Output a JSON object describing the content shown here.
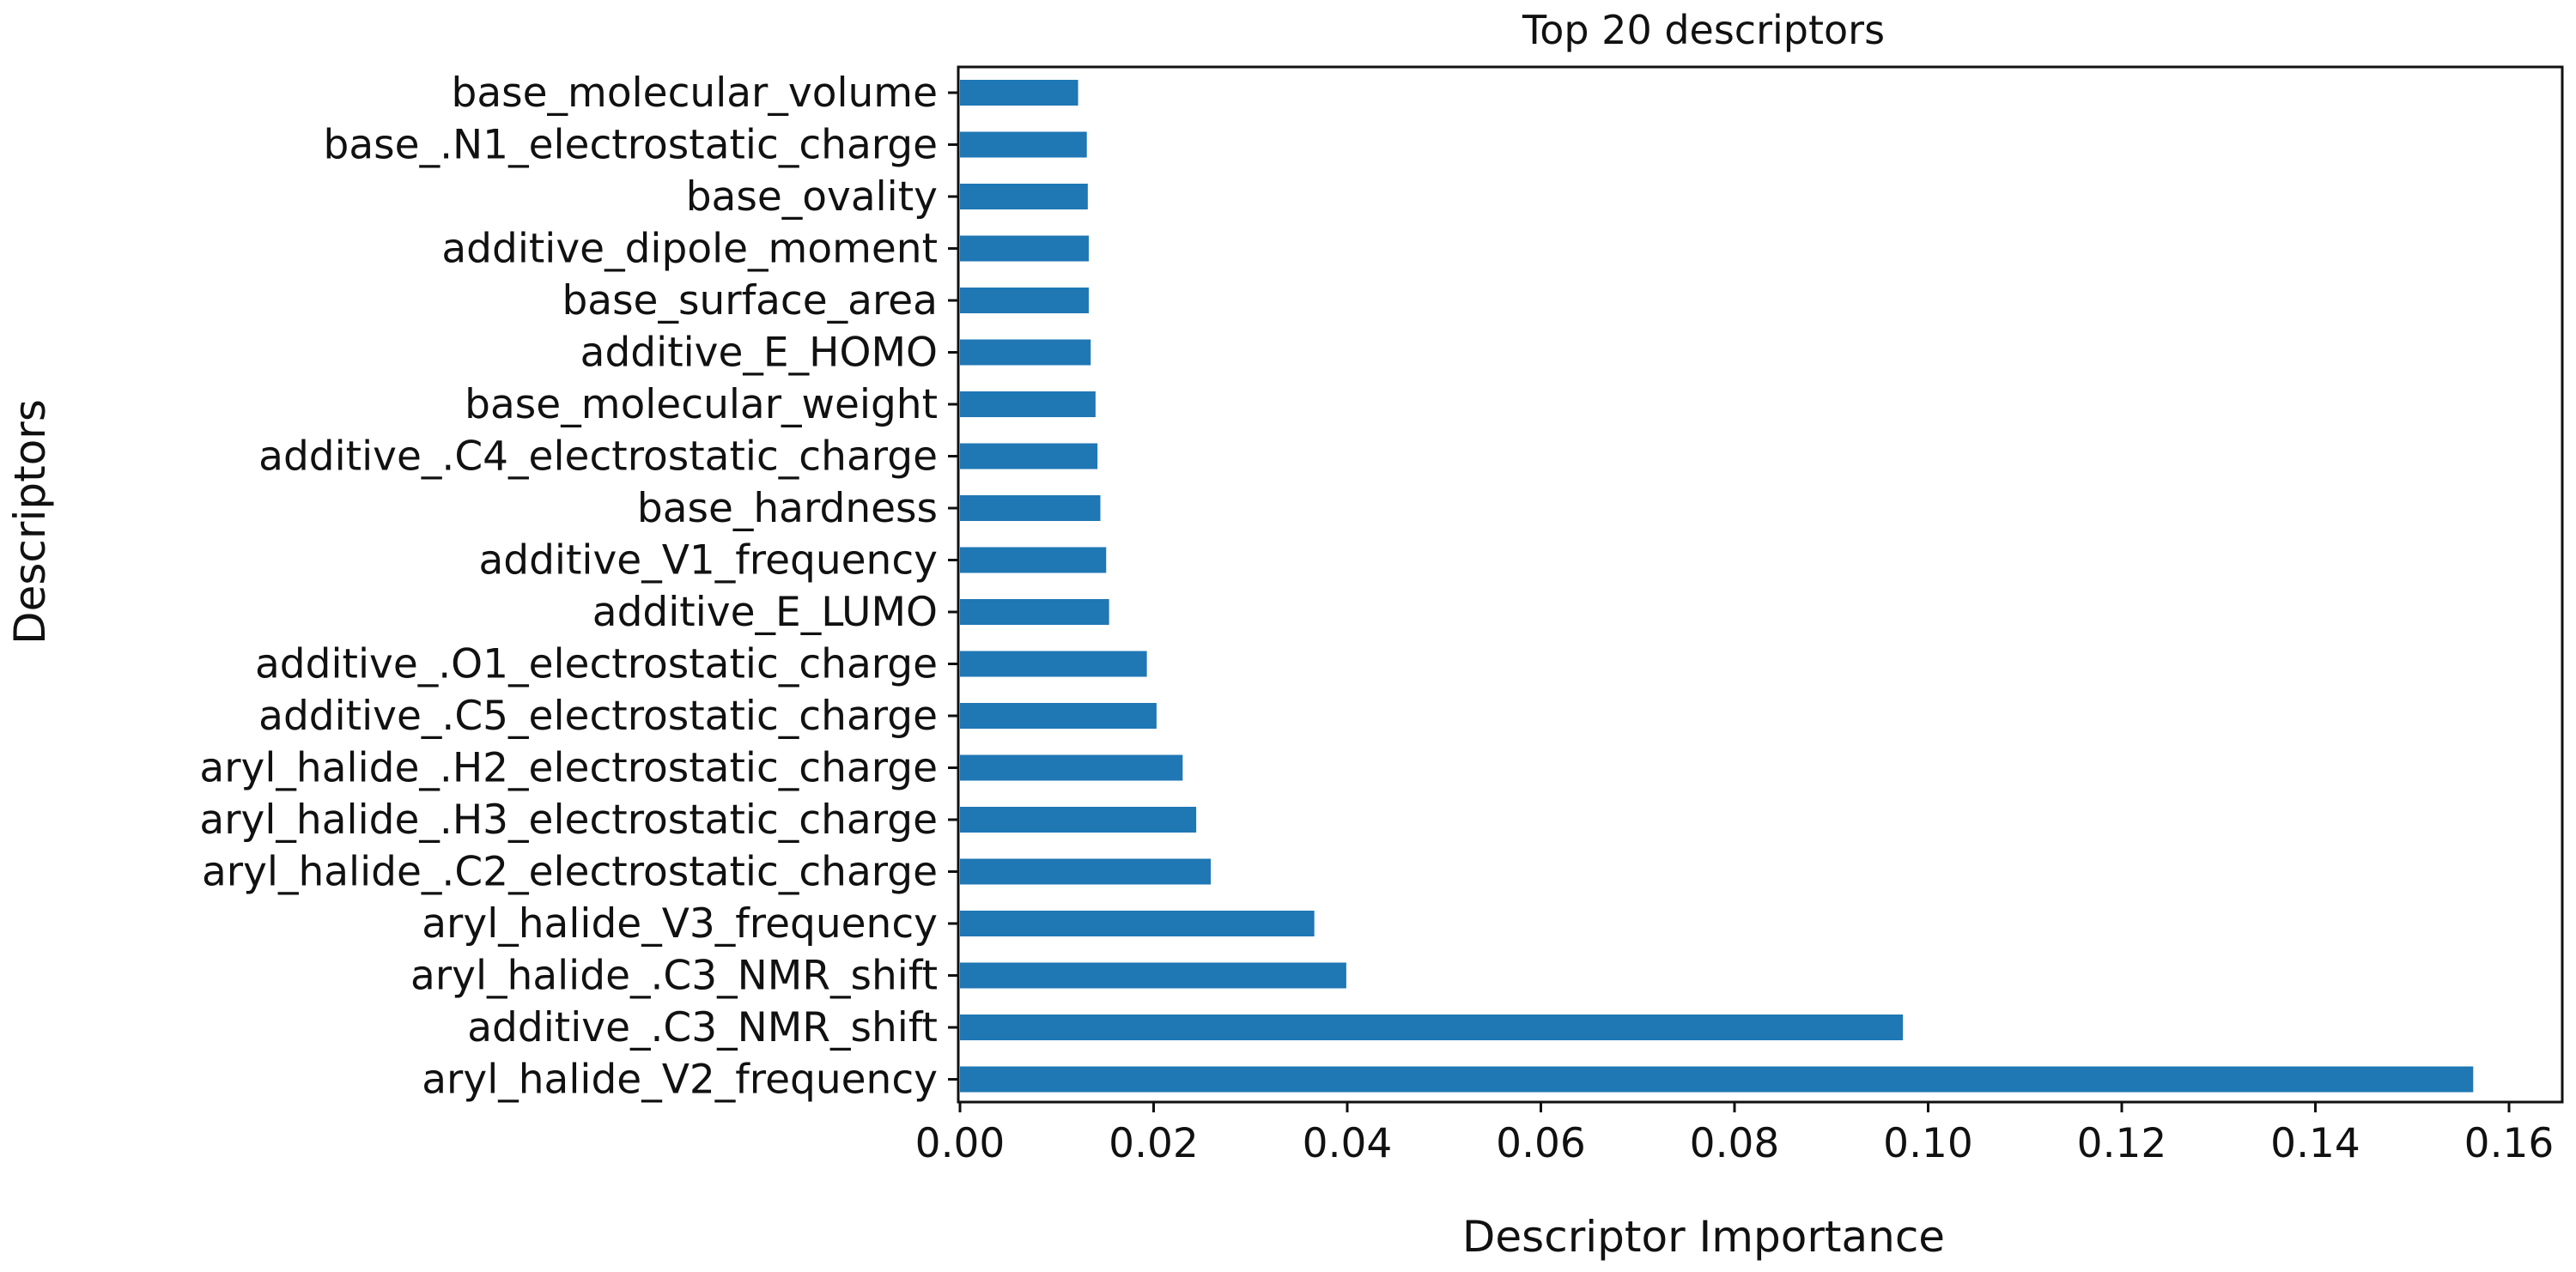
{
  "chart_data": {
    "type": "bar",
    "orientation": "horizontal",
    "title": "Top 20 descriptors",
    "xlabel": "Descriptor Importance",
    "ylabel": "Descriptors",
    "xlim": [
      0,
      0.165
    ],
    "xticks": [
      0.0,
      0.02,
      0.04,
      0.06,
      0.08,
      0.1,
      0.12,
      0.14,
      0.16
    ],
    "xtick_labels": [
      "0.00",
      "0.02",
      "0.04",
      "0.06",
      "0.08",
      "0.10",
      "0.12",
      "0.14",
      "0.16"
    ],
    "grid": false,
    "bar_color": "#1f77b4",
    "categories": [
      "base_molecular_volume",
      "base_.N1_electrostatic_charge",
      "base_ovality",
      "additive_dipole_moment",
      "base_surface_area",
      "additive_E_HOMO",
      "base_molecular_weight",
      "additive_.C4_electrostatic_charge",
      "base_hardness",
      "additive_V1_frequency",
      "additive_E_LUMO",
      "additive_.O1_electrostatic_charge",
      "additive_.C5_electrostatic_charge",
      "aryl_halide_.H2_electrostatic_charge",
      "aryl_halide_.H3_electrostatic_charge",
      "aryl_halide_.C2_electrostatic_charge",
      "aryl_halide_V3_frequency",
      "aryl_halide_.C3_NMR_shift",
      "additive_.C3_NMR_shift",
      "aryl_halide_V2_frequency"
    ],
    "values": [
      0.0122,
      0.0131,
      0.0132,
      0.0133,
      0.0133,
      0.0135,
      0.014,
      0.0142,
      0.0145,
      0.0151,
      0.0154,
      0.0193,
      0.0203,
      0.023,
      0.0244,
      0.0259,
      0.0366,
      0.0399,
      0.0974,
      0.1563
    ]
  }
}
